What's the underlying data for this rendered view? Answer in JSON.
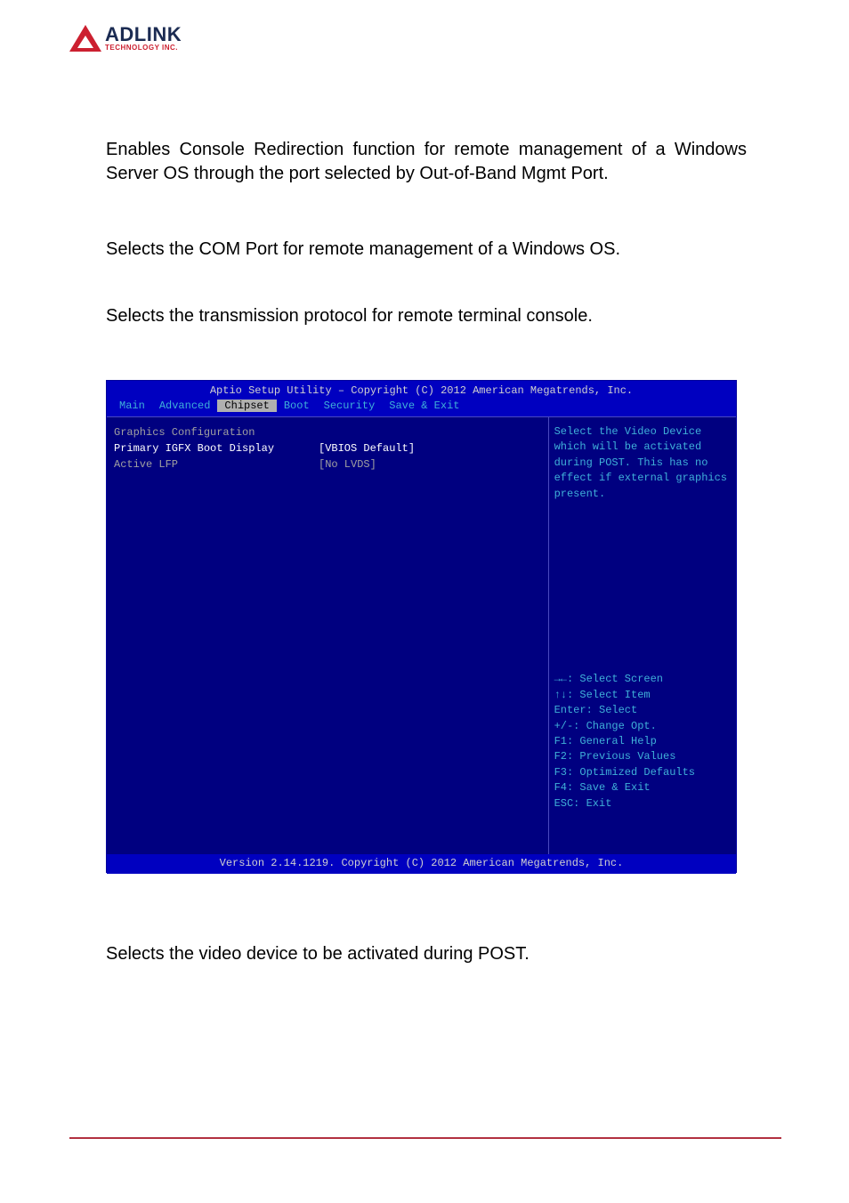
{
  "logo": {
    "main": "ADLINK",
    "sub": "TECHNOLOGY INC."
  },
  "paragraphs": {
    "p1": "Enables Console Redirection function for remote management of a Windows Server OS through the port selected by Out-of-Band Mgmt Port.",
    "p2": "Selects the COM Port for remote management of a Windows OS.",
    "p3": "Selects the transmission protocol for remote terminal console.",
    "p4": "Selects the video device to be activated during POST."
  },
  "bios": {
    "title": "Aptio Setup Utility – Copyright (C) 2012 American Megatrends, Inc.",
    "tabs": [
      "Main",
      "Advanced",
      "Chipset",
      "Boot",
      "Security",
      "Save & Exit"
    ],
    "active_tab_index": 2,
    "rows": [
      {
        "label": "Graphics Configuration",
        "value": "",
        "selected": false
      },
      {
        "label": "Primary IGFX Boot Display",
        "value": "[VBIOS Default]",
        "selected": true
      },
      {
        "label": "Active LFP",
        "value": "[No LVDS]",
        "selected": false
      }
    ],
    "help_text": "Select the Video Device which will be activated during POST.  This has no effect if external graphics present.",
    "keys": [
      "→←: Select Screen",
      "↑↓: Select Item",
      "Enter: Select",
      "+/-: Change Opt.",
      "F1: General Help",
      "F2: Previous Values",
      "F3: Optimized Defaults",
      "F4: Save & Exit",
      "ESC: Exit"
    ],
    "footer": "Version 2.14.1219. Copyright (C) 2012 American Megatrends, Inc.",
    "colors": {
      "header_bg": "#0000c0",
      "body_bg": "#000080",
      "tab_text": "#3fb0d8",
      "tab_active_bg": "#b0b0b0",
      "tab_active_text": "#000000",
      "row_text": "#a0a0a0",
      "row_selected_text": "#ffffff",
      "help_text": "#3fb0d8",
      "border": "#4a4ac0",
      "footer_text": "#d0d0d0"
    }
  },
  "page_accent_color": "#b23040"
}
